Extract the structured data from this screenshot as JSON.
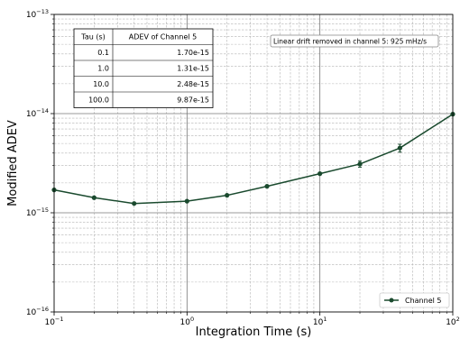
{
  "chart_data": {
    "type": "line",
    "xlabel": "Integration Time (s)",
    "ylabel": "Modified ADEV",
    "xscale": "log",
    "yscale": "log",
    "xlim": [
      0.1,
      100
    ],
    "ylim": [
      1e-16,
      1e-13
    ],
    "grid": true,
    "x_ticks": [
      {
        "value": 0.1,
        "base": "10",
        "exp": "−1"
      },
      {
        "value": 1,
        "base": "10",
        "exp": "0"
      },
      {
        "value": 10,
        "base": "10",
        "exp": "1"
      },
      {
        "value": 100,
        "base": "10",
        "exp": "2"
      }
    ],
    "y_ticks": [
      {
        "value": 1e-16,
        "base": "10",
        "exp": "−16"
      },
      {
        "value": 1e-15,
        "base": "10",
        "exp": "−15"
      },
      {
        "value": 1e-14,
        "base": "10",
        "exp": "−14"
      },
      {
        "value": 1e-13,
        "base": "10",
        "exp": "−13"
      }
    ],
    "series": [
      {
        "name": "Channel 5",
        "color": "#1a4a2e",
        "x": [
          0.1,
          0.2,
          0.4,
          1,
          2,
          4,
          10,
          20,
          40,
          100
        ],
        "y": [
          1.7e-15,
          1.42e-15,
          1.24e-15,
          1.31e-15,
          1.5e-15,
          1.85e-15,
          2.48e-15,
          3.1e-15,
          4.5e-15,
          9.87e-15
        ],
        "yerr_rel": [
          0,
          0,
          0,
          0,
          0,
          0,
          0.02,
          0.07,
          0.09,
          0.03
        ]
      }
    ],
    "legend": {
      "position": "bottom-right",
      "label": "Channel 5"
    },
    "annotation": "Linear drift removed in channel 5: 925 mHz/s",
    "table": {
      "headers": [
        "Tau (s)",
        "ADEV of Channel 5"
      ],
      "rows": [
        [
          "0.1",
          "1.70e-15"
        ],
        [
          "1.0",
          "1.31e-15"
        ],
        [
          "10.0",
          "2.48e-15"
        ],
        [
          "100.0",
          "9.87e-15"
        ]
      ]
    }
  }
}
